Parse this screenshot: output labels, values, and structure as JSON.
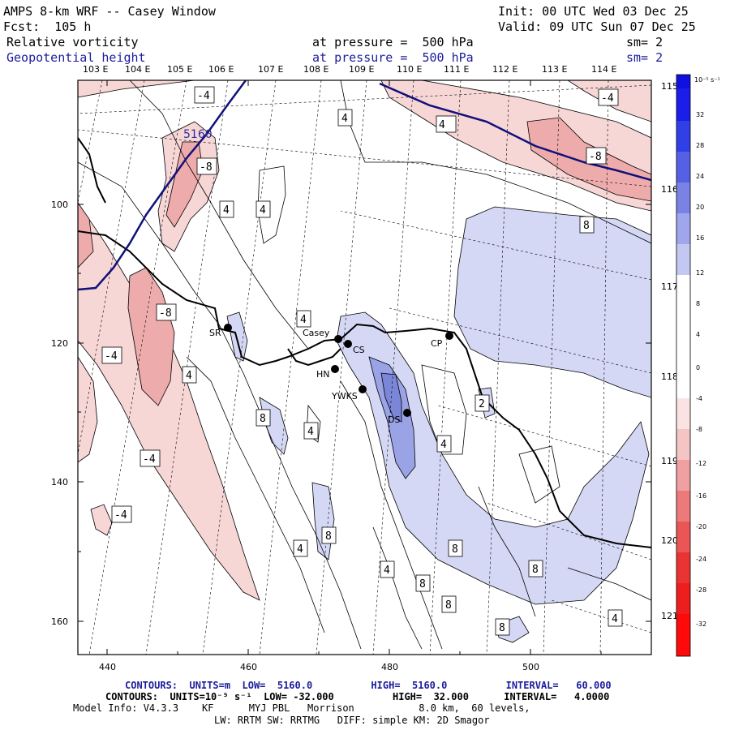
{
  "header": {
    "title": "AMPS 8-km WRF -- Casey Window",
    "init": "Init: 00 UTC Wed 03 Dec 25",
    "fcst": "Fcst:  105 h",
    "valid": "Valid: 09 UTC Sun 07 Dec 25",
    "field1_name": "Relative vorticity",
    "field1_level": "at pressure =  500 hPa",
    "field1_sm": "sm= 2",
    "field2_name": "Geopotential height",
    "field2_level": "at pressure =  500 hPa",
    "field2_sm": "sm= 2"
  },
  "colors": {
    "accent_blue": "#1c1c9c",
    "height_contour": "#10107a",
    "neg_fill": "#f7d6d6",
    "neg_fill_strong": "#eeabab",
    "pos_fill": "#d5d8f4",
    "pos_fill_strong": "#9aa3e6"
  },
  "map": {
    "top_lon_labels": [
      "103 E",
      "104 E",
      "105 E",
      "106 E",
      "107 E",
      "108 E",
      "109 E",
      "110 E",
      "111 E",
      "112 E",
      "113 E",
      "114 E"
    ],
    "right_lon_labels": [
      "115 E",
      "116 E",
      "117 E",
      "118 E",
      "119 E",
      "120 E",
      "121 E"
    ],
    "x_ticks": [
      "440",
      "460",
      "480",
      "500"
    ],
    "y_ticks": [
      "100",
      "120",
      "140",
      "160"
    ],
    "height_label": "5160",
    "stations": [
      {
        "name": "SR"
      },
      {
        "name": "Casey"
      },
      {
        "name": "CS"
      },
      {
        "name": "CP"
      },
      {
        "name": "HN"
      },
      {
        "name": "YWKS"
      },
      {
        "name": "DS"
      }
    ],
    "contour_labels": [
      "-4",
      "4",
      "-4",
      "-8",
      "-8",
      "4",
      "4",
      "8",
      "-8",
      "4",
      "-4",
      "4",
      "8",
      "4",
      "-4",
      "-4",
      "4",
      "8",
      "4",
      "4",
      "8",
      "8",
      "4",
      "8",
      "8",
      "8",
      "4",
      "8",
      "8",
      "4",
      "2"
    ]
  },
  "colorbar": {
    "units": "10⁻⁵ s⁻¹",
    "labels": [
      "32",
      "28",
      "24",
      "20",
      "16",
      "12",
      "8",
      "4",
      "0",
      "-4",
      "-8",
      "-12",
      "-16",
      "-20",
      "-24",
      "-28",
      "-32"
    ]
  },
  "footer": {
    "line1": "CONTOURS:  UNITS=m  LOW=  5160.0          HIGH=  5160.0          INTERVAL=   60.000",
    "line2": "CONTOURS:  UNITS=10⁻⁵ s⁻¹  LOW= -32.000          HIGH=  32.000      INTERVAL=   4.0000",
    "line3": "Model Info: V4.3.3    KF      MYJ PBL   Morrison           8.0 km,  60 levels,",
    "line4": "LW: RRTM SW: RRTMG   DIFF: simple KM: 2D Smagor"
  }
}
